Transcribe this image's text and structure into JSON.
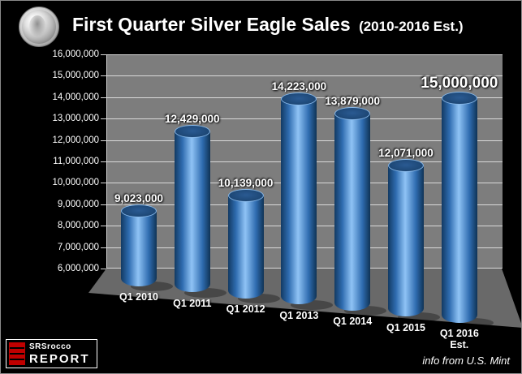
{
  "header": {
    "title": "First Quarter Silver Eagle Sales",
    "subtitle": "(2010-2016 Est.)"
  },
  "chart_data": {
    "type": "bar",
    "title": "First Quarter Silver Eagle Sales (2010-2016 Est.)",
    "categories": [
      "Q1 2010",
      "Q1 2011",
      "Q1 2012",
      "Q1 2013",
      "Q1 2014",
      "Q1 2015",
      "Q1 2016 Est."
    ],
    "values": [
      9023000,
      12429000,
      10139000,
      14223000,
      13879000,
      12071000,
      15000000
    ],
    "value_labels": [
      "9,023,000",
      "12,429,000",
      "10,139,000",
      "14,223,000",
      "13,879,000",
      "12,071,000",
      "15,000,000"
    ],
    "ylim": [
      6000000,
      16000000
    ],
    "ytick_step": 1000000,
    "xlabel": "",
    "ylabel": "",
    "grid": true,
    "legend": false,
    "bar_color": "#3b78c2",
    "wall_color": "#7d7d7d",
    "floor_color": "#696969",
    "background_color": "#000000"
  },
  "footer": {
    "logo_line1": "SRSrocco",
    "logo_line2": "REPORT",
    "source_note": "info from U.S. Mint"
  }
}
